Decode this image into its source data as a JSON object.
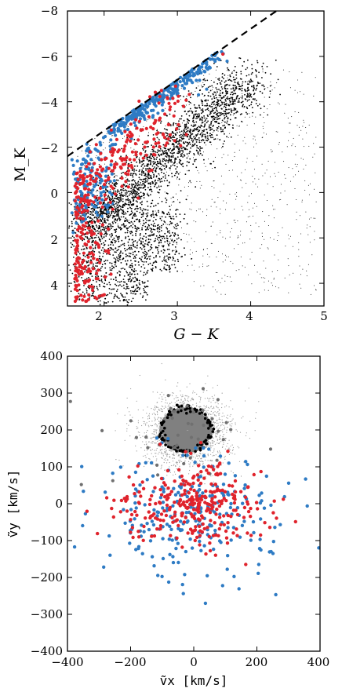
{
  "chart_data": [
    {
      "type": "scatter",
      "title": "",
      "xlabel": "G − K",
      "ylabel": "M_K",
      "xlim": [
        1.5,
        5
      ],
      "ylim": [
        5,
        -8
      ],
      "y_inverted": true,
      "x_ticks": [
        "2",
        "3",
        "4",
        "5"
      ],
      "y_ticks": [
        "4",
        "2",
        "0",
        "−2",
        "−4",
        "−6",
        "−8"
      ],
      "colors": {
        "background": "#000000",
        "blue": "#2e7bc4",
        "red": "#e0232c",
        "line": "#000000"
      },
      "series": [
        {
          "color_role": "background",
          "description_points": [
            [
              1.9,
              4.5
            ],
            [
              2.2,
              1.5
            ],
            [
              2.6,
              0.2
            ],
            [
              3.0,
              -1.5
            ],
            [
              3.5,
              -3.0
            ],
            [
              3.2,
              -4.0
            ]
          ]
        },
        {
          "color_role": "blue",
          "points": [
            [
              1.6,
              1.0
            ],
            [
              1.7,
              0.0
            ],
            [
              1.8,
              -1.0
            ],
            [
              1.9,
              -2.0
            ],
            [
              2.0,
              -2.5
            ],
            [
              2.2,
              -3.2
            ],
            [
              2.5,
              -4.0
            ],
            [
              2.8,
              -4.8
            ],
            [
              3.2,
              -5.6
            ],
            [
              3.5,
              -6.0
            ]
          ]
        },
        {
          "color_role": "red",
          "points": [
            [
              1.7,
              3.5
            ],
            [
              1.8,
              2.0
            ],
            [
              1.9,
              1.0
            ],
            [
              2.0,
              -1.0
            ],
            [
              2.2,
              -1.5
            ],
            [
              2.5,
              -2.0
            ],
            [
              2.7,
              -2.8
            ],
            [
              2.9,
              -3.0
            ],
            [
              3.6,
              -6.1
            ]
          ]
        }
      ],
      "reference_line": {
        "style": "dashed",
        "from": [
          1.5,
          -1.6
        ],
        "to": [
          4.35,
          -8.0
        ]
      }
    },
    {
      "type": "scatter",
      "title": "",
      "xlabel": "ṽx [km/s]",
      "ylabel": "ṽy [km/s]",
      "xlim": [
        -400,
        400
      ],
      "ylim": [
        -400,
        400
      ],
      "x_ticks": [
        "−400",
        "−200",
        "0",
        "200",
        "400"
      ],
      "y_ticks": [
        "400",
        "300",
        "200",
        "100",
        "0",
        "−100",
        "−200",
        "−300",
        "−400"
      ],
      "colors": {
        "gray": "#808080",
        "blue": "#2e7bc4",
        "red": "#e0232c",
        "black": "#000000"
      },
      "clusters": [
        {
          "name_role": "gray_core",
          "center": [
            -20,
            200
          ],
          "radius": [
            95,
            70
          ]
        },
        {
          "name_role": "spread",
          "center": [
            0,
            -20
          ],
          "radius": [
            330,
            150
          ]
        }
      ]
    }
  ]
}
